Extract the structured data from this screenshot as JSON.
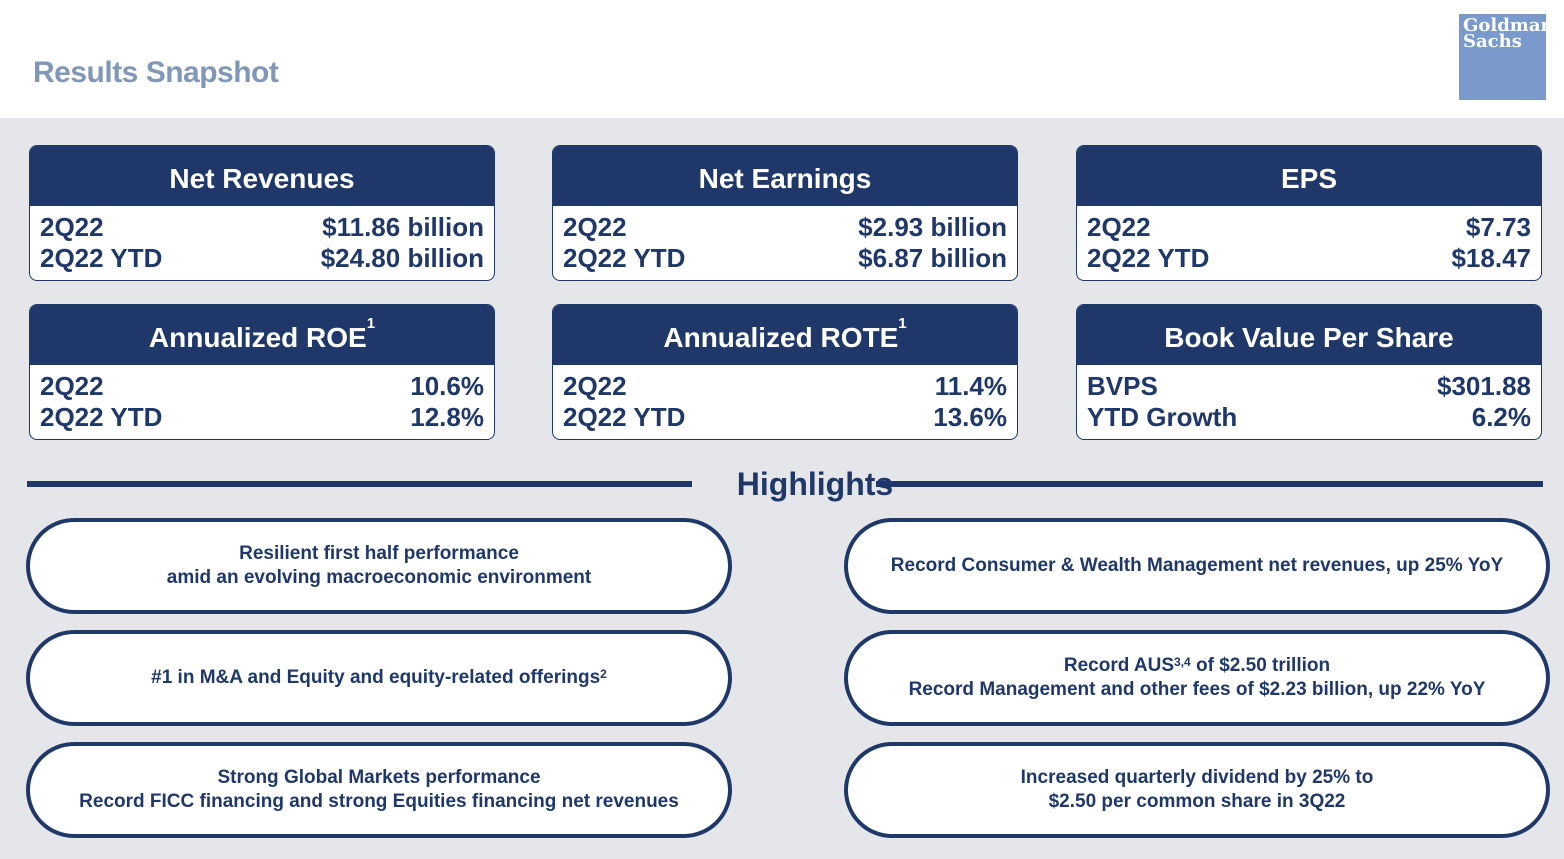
{
  "header": {
    "title": "Results Snapshot",
    "logo_line1": "Goldman",
    "logo_line2": "Sachs"
  },
  "cards": [
    {
      "title": "Net Revenues",
      "rows": [
        {
          "label": "2Q22",
          "value": "$11.86 billion"
        },
        {
          "label": "2Q22 YTD",
          "value": "$24.80 billion"
        }
      ]
    },
    {
      "title": "Net Earnings",
      "rows": [
        {
          "label": "2Q22",
          "value": "$2.93 billion"
        },
        {
          "label": "2Q22 YTD",
          "value": "$6.87 billion"
        }
      ]
    },
    {
      "title": "EPS",
      "rows": [
        {
          "label": "2Q22",
          "value": "$7.73"
        },
        {
          "label": "2Q22 YTD",
          "value": "$18.47"
        }
      ]
    },
    {
      "title": "Annualized ROE",
      "sup": "1",
      "rows": [
        {
          "label": "2Q22",
          "value": "10.6%"
        },
        {
          "label": "2Q22 YTD",
          "value": "12.8%"
        }
      ]
    },
    {
      "title": "Annualized ROTE",
      "sup": "1",
      "rows": [
        {
          "label": "2Q22",
          "value": "11.4%"
        },
        {
          "label": "2Q22 YTD",
          "value": "13.6%"
        }
      ]
    },
    {
      "title": "Book Value Per Share",
      "rows": [
        {
          "label": "BVPS",
          "value": "$301.88"
        },
        {
          "label": "YTD Growth",
          "value": "6.2%"
        }
      ]
    }
  ],
  "highlights": {
    "title": "Highlights",
    "items": [
      {
        "line1": "Resilient first half performance",
        "line2": "amid an evolving macroeconomic environment"
      },
      {
        "line1": "Record Consumer & Wealth Management net revenues, up 25% YoY"
      },
      {
        "line1": "#1 in M&A and Equity and equity-related offerings",
        "line1_sup": "2"
      },
      {
        "line1a": "Record AUS",
        "line1_sup": "3,4",
        "line1b": " of $2.50 trillion",
        "line2": "Record Management and other fees of $2.23 billion, up 22% YoY"
      },
      {
        "line1": "Strong Global Markets performance",
        "line2": "Record FICC financing and strong Equities financing net revenues"
      },
      {
        "line1": "Increased quarterly dividend by 25% to",
        "line2": "$2.50 per common share in 3Q22"
      }
    ]
  }
}
